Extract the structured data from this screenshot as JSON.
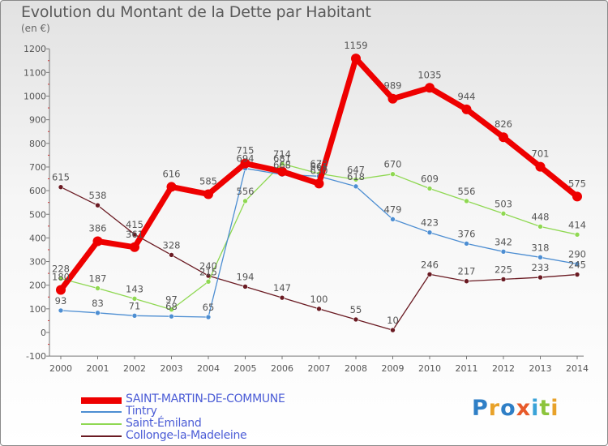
{
  "title": "Evolution du Montant de la Dette par Habitant",
  "subtitle": "(en €)",
  "logo": {
    "text": "Proxiti",
    "colors": [
      "#2f7fc6",
      "#e8a22a",
      "#2f7fc6",
      "#e85a2a",
      "#3aa3d8",
      "#8cc43c",
      "#e8a22a"
    ]
  },
  "chart_data": {
    "type": "line",
    "title": "Evolution du Montant de la Dette par Habitant",
    "ylabel": "(en €)",
    "xlabel": "",
    "ylim": [
      -100,
      1200
    ],
    "yticks": [
      "-100",
      "0",
      "100",
      "200",
      "300",
      "400",
      "500",
      "600",
      "700",
      "800",
      "900",
      "1000",
      "1100",
      "1200"
    ],
    "categories": [
      "2000",
      "2001",
      "2002",
      "2003",
      "2004",
      "2005",
      "2006",
      "2007",
      "2008",
      "2009",
      "2010",
      "2011",
      "2012",
      "2013",
      "2014"
    ],
    "grid": false,
    "series": [
      {
        "name": "SAINT-MARTIN-DE-COMMUNE",
        "color": "#ee0000",
        "values": [
          180,
          386,
          361,
          616,
          585,
          715,
          681,
          630,
          1159,
          989,
          1035,
          944,
          826,
          701,
          575
        ],
        "labels": [
          "180",
          "386",
          "361",
          "616",
          "585",
          "715",
          "681",
          "630",
          "1159",
          "989",
          "1035",
          "944",
          "826",
          "701",
          "575"
        ]
      },
      {
        "name": "Tintry",
        "color": "#4d8ed2",
        "values": [
          93,
          83,
          71,
          68,
          65,
          694,
          668,
          661,
          618,
          479,
          423,
          376,
          342,
          318,
          290
        ],
        "labels": [
          "93",
          "83",
          "71",
          "68",
          "65",
          "694",
          "668",
          "661",
          "618",
          "479",
          "423",
          "376",
          "342",
          "318",
          "290"
        ]
      },
      {
        "name": "Saint-Émiland",
        "color": "#8fd852",
        "values": [
          228,
          187,
          143,
          97,
          215,
          556,
          714,
          672,
          647,
          670,
          609,
          556,
          503,
          448,
          414
        ],
        "labels": [
          "228",
          "187",
          "143",
          "97",
          "215",
          "556",
          "714",
          "672",
          "647",
          "670",
          "609",
          "556",
          "503",
          "448",
          "414"
        ]
      },
      {
        "name": "Collonge-la-Madeleine",
        "color": "#6a1a22",
        "values": [
          615,
          538,
          415,
          328,
          240,
          194,
          147,
          100,
          55,
          10,
          246,
          217,
          225,
          233,
          245
        ],
        "labels": [
          "615",
          "538",
          "415",
          "328",
          "240",
          "194",
          "147",
          "100",
          "55",
          "10",
          "246",
          "217",
          "225",
          "233",
          "245"
        ]
      }
    ]
  }
}
